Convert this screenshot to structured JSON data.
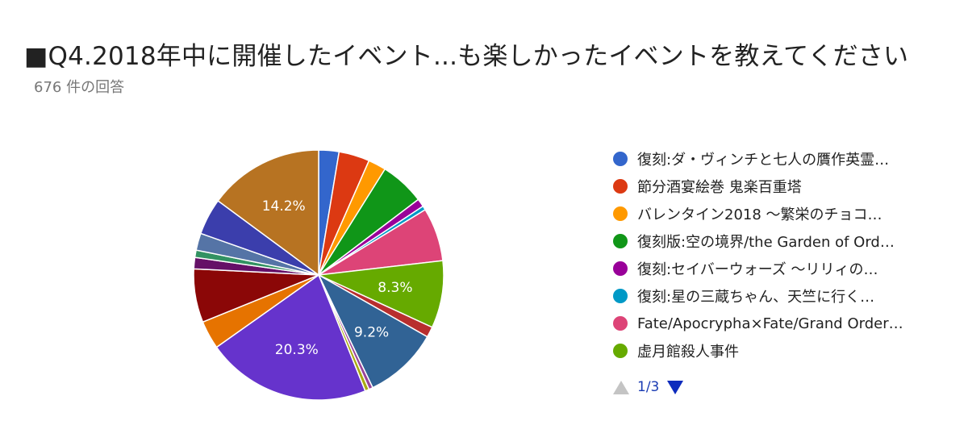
{
  "title": "■Q4.2018年中に開催したイベント...も楽しかったイベントを教えてください",
  "subtitle": "676 件の回答",
  "colors": {
    "title": "#222222",
    "subtitle": "#777777",
    "pager_active": "#0d2bbd",
    "pager_disabled": "#c4c4c4"
  },
  "legend": [
    {
      "label": "復刻:ダ・ヴィンチと七人の贋作英霊…",
      "color": "#3366cc"
    },
    {
      "label": "節分酒宴絵巻 鬼楽百重塔",
      "color": "#dc3912"
    },
    {
      "label": "バレンタイン2018 〜繁栄のチョコ…",
      "color": "#ff9900"
    },
    {
      "label": "復刻版:空の境界/the Garden of Ord…",
      "color": "#109618"
    },
    {
      "label": "復刻:セイバーウォーズ 〜リリィの…",
      "color": "#990099"
    },
    {
      "label": "復刻:星の三蔵ちゃん、天竺に行く…",
      "color": "#0099c6"
    },
    {
      "label": "Fate/Apocrypha×Fate/Grand Order…",
      "color": "#dd4477"
    },
    {
      "label": "虚月館殺人事件",
      "color": "#66aa00"
    }
  ],
  "pager": {
    "text": "1/3"
  },
  "chart_data": {
    "type": "pie",
    "start_angle_deg": 90,
    "direction": "clockwise",
    "slices": [
      {
        "color": "#3366cc",
        "value": 2.5
      },
      {
        "color": "#dc3912",
        "value": 3.8
      },
      {
        "color": "#ff9900",
        "value": 2.2
      },
      {
        "color": "#109618",
        "value": 5.5
      },
      {
        "color": "#990099",
        "value": 1.0
      },
      {
        "color": "#0099c6",
        "value": 0.5
      },
      {
        "color": "#dd4477",
        "value": 6.6
      },
      {
        "color": "#66aa00",
        "value": 8.3,
        "label": "8.3%"
      },
      {
        "color": "#b82e2e",
        "value": 1.3
      },
      {
        "color": "#316395",
        "value": 9.2,
        "label": "9.2%"
      },
      {
        "color": "#994499",
        "value": 0.5
      },
      {
        "color": "#aaaa11",
        "value": 0.5
      },
      {
        "color": "#6633cc",
        "value": 20.3,
        "label": "20.3%"
      },
      {
        "color": "#e67300",
        "value": 3.5
      },
      {
        "color": "#8b0707",
        "value": 6.6
      },
      {
        "color": "#651067",
        "value": 1.4
      },
      {
        "color": "#329262",
        "value": 0.9
      },
      {
        "color": "#5574a6",
        "value": 2.1
      },
      {
        "color": "#3b3eac",
        "value": 4.5
      },
      {
        "color": "#b77322",
        "value": 14.2,
        "label": "14.2%"
      }
    ]
  }
}
